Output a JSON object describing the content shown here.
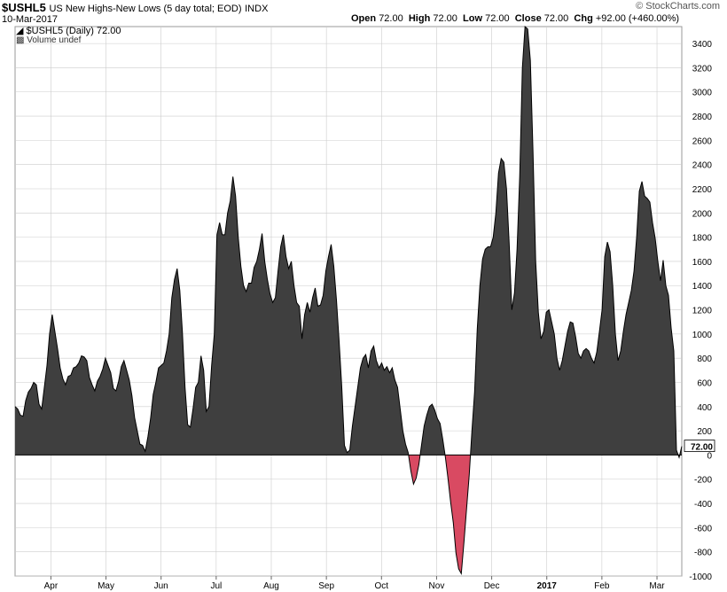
{
  "header": {
    "symbol": "$USHL5",
    "description": "US New Highs-New Lows (5 day total; EOD)",
    "exchange": "INDX",
    "date": "10-Mar-2017",
    "brand": "© StockCharts.com",
    "ohlc": {
      "open_label": "Open",
      "open": "72.00",
      "high_label": "High",
      "high": "72.00",
      "low_label": "Low",
      "low": "72.00",
      "close_label": "Close",
      "close": "72.00",
      "chg_label": "Chg",
      "chg": "+92.00 (+460.00%)"
    }
  },
  "legend": {
    "series": "$USHL5 (Daily) 72.00",
    "volume": "Volume undef"
  },
  "colors": {
    "positive": "#3f3f3f",
    "negative": "#d94a62",
    "grid": "#cccccc",
    "label_box": "#ffffff"
  },
  "chart_data": {
    "type": "area",
    "ylim": [
      -1000,
      3540
    ],
    "yticks": [
      -1000,
      -800,
      -600,
      -400,
      -200,
      0,
      200,
      400,
      600,
      800,
      1000,
      1200,
      1400,
      1600,
      1800,
      2000,
      2200,
      2400,
      2600,
      2800,
      3000,
      3200,
      3400
    ],
    "last_value_label": "72.00",
    "last_value": 72,
    "x_labels": [
      "Apr",
      "May",
      "Jun",
      "Jul",
      "Aug",
      "Sep",
      "Oct",
      "Nov",
      "Dec",
      "2017",
      "Feb",
      "Mar"
    ],
    "x_label_bold": "2017",
    "grid": true,
    "series": [
      {
        "values": [
          400,
          380,
          330,
          320,
          450,
          520,
          550,
          600,
          580,
          420,
          380,
          560,
          740,
          1000,
          1160,
          1020,
          880,
          720,
          630,
          580,
          650,
          660,
          720,
          730,
          760,
          820,
          810,
          780,
          640,
          580,
          530,
          610,
          650,
          710,
          800,
          740,
          680,
          550,
          530,
          610,
          730,
          780,
          700,
          620,
          490,
          310,
          200,
          90,
          80,
          30,
          150,
          300,
          500,
          600,
          720,
          740,
          760,
          860,
          1000,
          1300,
          1450,
          1540,
          1360,
          1020,
          560,
          250,
          230,
          380,
          560,
          600,
          820,
          700,
          360,
          400,
          740,
          1000,
          1820,
          1920,
          1820,
          1820,
          2000,
          2100,
          2300,
          2140,
          1800,
          1560,
          1400,
          1350,
          1420,
          1420,
          1550,
          1600,
          1700,
          1830,
          1600,
          1450,
          1330,
          1260,
          1300,
          1520,
          1720,
          1820,
          1640,
          1540,
          1600,
          1400,
          1260,
          1230,
          960,
          1160,
          1260,
          1180,
          1300,
          1380,
          1230,
          1240,
          1320,
          1520,
          1640,
          1740,
          1560,
          1280,
          940,
          560,
          80,
          20,
          40,
          240,
          400,
          560,
          720,
          800,
          830,
          720,
          860,
          900,
          780,
          720,
          760,
          700,
          730,
          680,
          720,
          620,
          560,
          380,
          200,
          90,
          20,
          -130,
          -240,
          -190,
          -80,
          80,
          240,
          330,
          400,
          420,
          370,
          300,
          260,
          130,
          -20,
          -200,
          -390,
          -560,
          -810,
          -940,
          -980,
          -720,
          -440,
          -160,
          200,
          520,
          1040,
          1400,
          1620,
          1700,
          1720,
          1720,
          1800,
          2000,
          2330,
          2450,
          2420,
          2200,
          1750,
          1200,
          1340,
          1700,
          2300,
          3200,
          3540,
          3520,
          3260,
          2500,
          1600,
          1180,
          960,
          1020,
          1180,
          1200,
          1100,
          1000,
          800,
          700,
          780,
          900,
          1020,
          1100,
          1090,
          980,
          840,
          800,
          860,
          880,
          860,
          800,
          760,
          850,
          1020,
          1200,
          1640,
          1760,
          1680,
          1400,
          1000,
          780,
          860,
          1020,
          1160,
          1260,
          1360,
          1520,
          1800,
          2180,
          2260,
          2140,
          2120,
          2090,
          1920,
          1790,
          1600,
          1440,
          1610,
          1400,
          1320,
          1050,
          860,
          40,
          -20,
          72
        ]
      }
    ]
  }
}
